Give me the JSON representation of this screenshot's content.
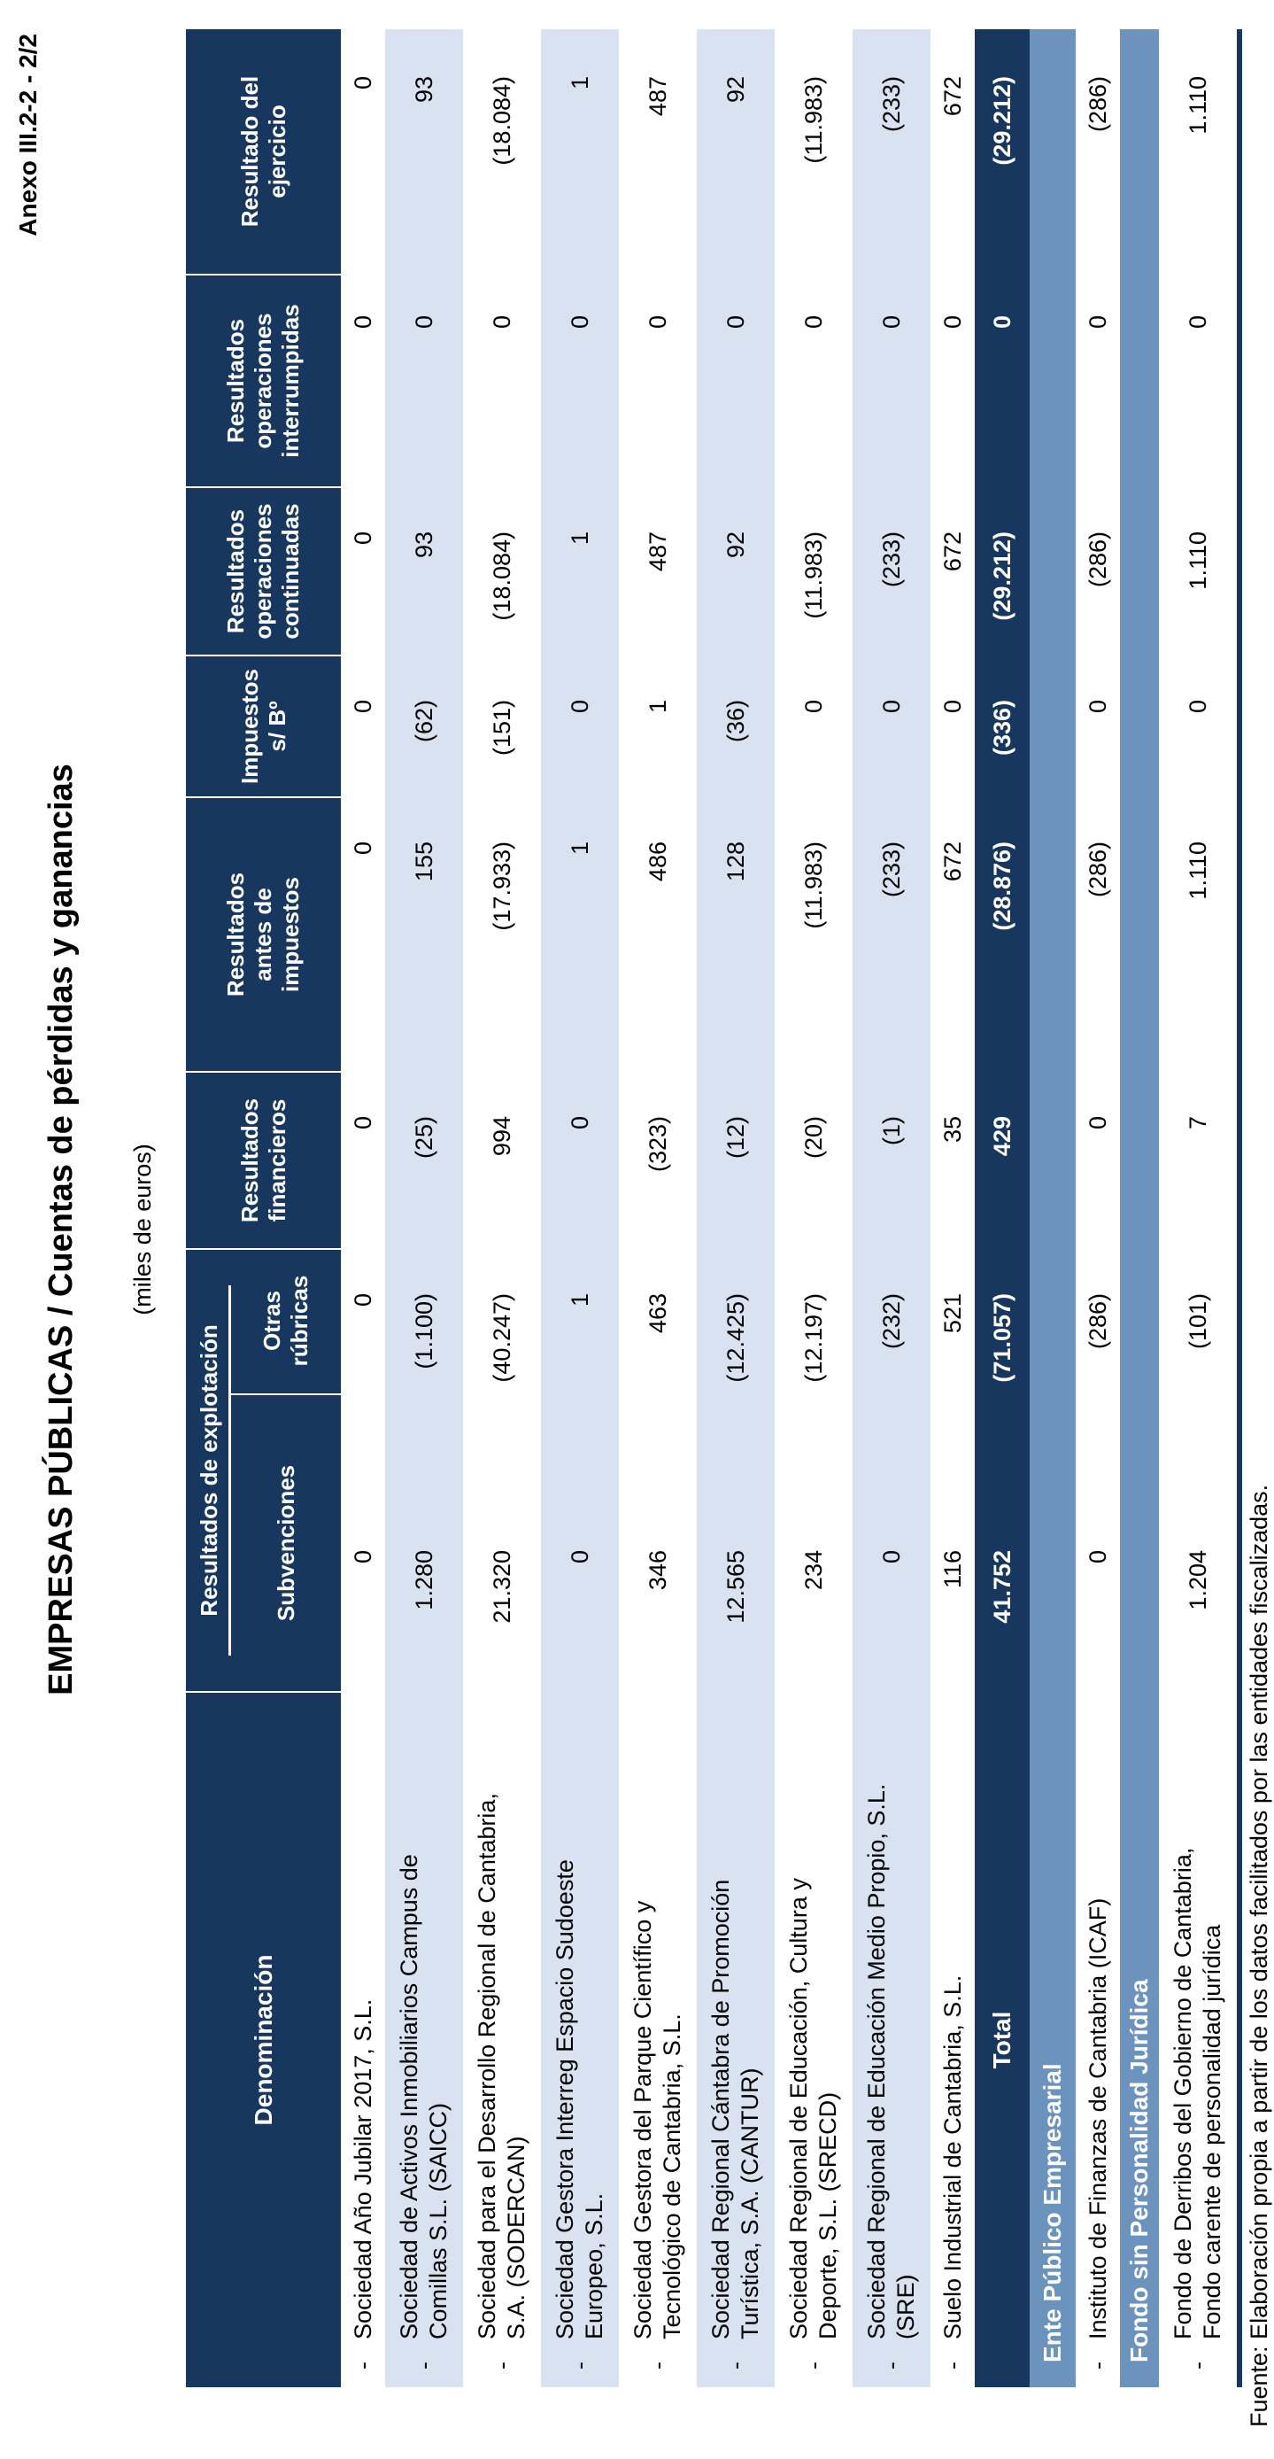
{
  "page": {
    "anexo": "Anexo III.2-2 - 2/2",
    "title": "EMPRESAS PÚBLICAS  /  Cuentas de pérdidas y ganancias",
    "units": "(miles de euros)",
    "footer": "Fuente: Elaboración propia a partir de los datos facilitados por las entidades fiscalizadas."
  },
  "table": {
    "header": {
      "denominacion": "Denominación",
      "group": {
        "label": "Resultados de explotación",
        "children": [
          "Subvenciones",
          "Otras\nrúbricas"
        ]
      },
      "columns": [
        "Resultados\nfinancieros",
        "Resultados\nantes de\nimpuestos",
        "Impuestos\ns/ Bº",
        "Resultados\noperaciones\ncontinuadas",
        "Resultados\noperaciones\ninterrumpidas",
        "Resultado del\nejercicio"
      ]
    },
    "rows": [
      {
        "type": "data",
        "name": [
          "Sociedad Año Jubilar 2017, S.L."
        ],
        "values": [
          "0",
          "0",
          "0",
          "0",
          "0",
          "0",
          "0",
          "0"
        ]
      },
      {
        "type": "data",
        "name": [
          "Sociedad de Activos Inmobiliarios Campus de",
          "Comillas S.L. (SAICC)"
        ],
        "values": [
          "1.280",
          "(1.100)",
          "(25)",
          "155",
          "(62)",
          "93",
          "0",
          "93"
        ]
      },
      {
        "type": "data",
        "name": [
          "Sociedad para el Desarrollo Regional de Cantabria,",
          "S.A. (SODERCAN)"
        ],
        "values": [
          "21.320",
          "(40.247)",
          "994",
          "(17.933)",
          "(151)",
          "(18.084)",
          "0",
          "(18.084)"
        ]
      },
      {
        "type": "data",
        "name": [
          "Sociedad Gestora Interreg Espacio Sudoeste",
          "Europeo, S.L."
        ],
        "values": [
          "0",
          "1",
          "0",
          "1",
          "0",
          "1",
          "0",
          "1"
        ]
      },
      {
        "type": "data",
        "name": [
          "Sociedad Gestora del Parque Científico y",
          "Tecnológico de Cantabria, S.L."
        ],
        "values": [
          "346",
          "463",
          "(323)",
          "486",
          "1",
          "487",
          "0",
          "487"
        ]
      },
      {
        "type": "data",
        "name": [
          "Sociedad Regional Cántabra de Promoción",
          "Turística, S.A. (CANTUR)"
        ],
        "values": [
          "12.565",
          "(12.425)",
          "(12)",
          "128",
          "(36)",
          "92",
          "0",
          "92"
        ]
      },
      {
        "type": "data",
        "name": [
          "Sociedad Regional de Educación, Cultura y",
          "Deporte, S.L. (SRECD)"
        ],
        "values": [
          "234",
          "(12.197)",
          "(20)",
          "(11.983)",
          "0",
          "(11.983)",
          "0",
          "(11.983)"
        ]
      },
      {
        "type": "data",
        "name": [
          "Sociedad Regional de Educación Medio Propio, S.L.",
          "(SRE)"
        ],
        "values": [
          "0",
          "(232)",
          "(1)",
          "(233)",
          "0",
          "(233)",
          "0",
          "(233)"
        ]
      },
      {
        "type": "data",
        "name": [
          "Suelo Industrial de Cantabria, S.L."
        ],
        "values": [
          "116",
          "521",
          "35",
          "672",
          "0",
          "672",
          "0",
          "672"
        ]
      },
      {
        "type": "total",
        "label": "Total",
        "values": [
          "41.752",
          "(71.057)",
          "429",
          "(28.876)",
          "(336)",
          "(29.212)",
          "0",
          "(29.212)"
        ]
      },
      {
        "type": "band",
        "label": "Ente Público Empresarial"
      },
      {
        "type": "data",
        "name": [
          "Instituto de Finanzas de Cantabria (ICAF)"
        ],
        "values": [
          "0",
          "(286)",
          "0",
          "(286)",
          "0",
          "(286)",
          "0",
          "(286)"
        ]
      },
      {
        "type": "band",
        "label": "Fondo sin Personalidad Jurídica"
      },
      {
        "type": "data",
        "name": [
          "Fondo de Derribos del Gobierno de Cantabria,",
          "Fondo carente de personalidad jurídica"
        ],
        "values": [
          "1.204",
          "(101)",
          "7",
          "1.110",
          "0",
          "1.110",
          "0",
          "1.110"
        ]
      }
    ]
  }
}
